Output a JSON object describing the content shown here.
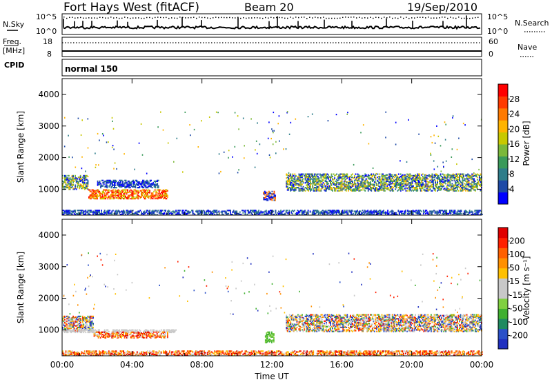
{
  "header": {
    "station": "Fort Hays West (fitACF)",
    "beam": "Beam 20",
    "date": "19/Sep/2010"
  },
  "strip_panels": {
    "nsky_label": "N.Sky",
    "nsearch_label": "N.Search",
    "nsky_ticks": [
      "10^5",
      "10^0"
    ],
    "nsearch_ticks": [
      "10^5",
      "10^0"
    ],
    "freq_label_line1": "Freq.",
    "freq_label_line2": "[MHz]",
    "freq_ticks": [
      "18",
      "8"
    ],
    "nave_label": "Nave",
    "nave_ticks": [
      "60",
      "0"
    ],
    "cpid_label": "CPID",
    "cpid_value": "normal 150"
  },
  "colorbars": {
    "power": {
      "label": "Power [dB]",
      "ticks": [
        "28",
        "24",
        "20",
        "16",
        "12",
        "8",
        "4"
      ],
      "colors": [
        "#0000ff",
        "#1e4aa6",
        "#2e7d8a",
        "#3a9a5a",
        "#7ab83a",
        "#c8c800",
        "#ffb400",
        "#ff7a00",
        "#ff3a00",
        "#ff0000"
      ]
    },
    "velocity": {
      "label": "Velocity [m s⁻¹]",
      "ticks": [
        "200",
        "100",
        "50",
        "15",
        "-15",
        "-50",
        "-100",
        "-200"
      ],
      "colors": [
        "#2030c0",
        "#2a50c8",
        "#208a60",
        "#40b030",
        "#80d040",
        "#c8c8c8",
        "#c8c8c8",
        "#ffc000",
        "#ff9000",
        "#ff6000",
        "#ff2000",
        "#e00000"
      ]
    }
  },
  "chart_data": [
    {
      "type": "heatmap",
      "title": "Power",
      "ylabel": "Slant Range [km]",
      "xlabel": "Time UT",
      "y_ticks": [
        "4000",
        "3000",
        "2000",
        "1000"
      ],
      "x_ticks": [
        "00:00",
        "04:00",
        "08:00",
        "12:00",
        "16:00",
        "20:00",
        "00:00"
      ],
      "ylim": [
        180,
        4500
      ],
      "xlim": [
        0,
        24
      ],
      "regions": [
        {
          "t0": 0.0,
          "t1": 1.5,
          "r0": 1000,
          "r1": 1450,
          "level": "mixed"
        },
        {
          "t0": 1.5,
          "t1": 6.0,
          "r0": 700,
          "r1": 1000,
          "level": "high"
        },
        {
          "t0": 2.0,
          "t1": 5.5,
          "r0": 1050,
          "r1": 1300,
          "level": "low"
        },
        {
          "t0": 11.5,
          "t1": 12.2,
          "r0": 650,
          "r1": 950,
          "level": "mid"
        },
        {
          "t0": 12.8,
          "t1": 24.0,
          "r0": 950,
          "r1": 1500,
          "level": "mixed"
        },
        {
          "t0": 0.0,
          "t1": 24.0,
          "r0": 200,
          "r1": 350,
          "level": "low"
        }
      ]
    },
    {
      "type": "heatmap",
      "title": "Velocity",
      "ylabel": "Slant Range [km]",
      "xlabel": "Time UT",
      "y_ticks": [
        "4000",
        "3000",
        "2000",
        "1000"
      ],
      "x_ticks": [
        "00:00",
        "04:00",
        "08:00",
        "12:00",
        "16:00",
        "20:00",
        "00:00"
      ],
      "ylim": [
        180,
        4500
      ],
      "xlim": [
        0,
        24
      ],
      "regions": [
        {
          "t0": 0.0,
          "t1": 1.8,
          "r0": 950,
          "r1": 1450,
          "level": "mixed"
        },
        {
          "t0": 0.0,
          "t1": 6.5,
          "r0": 920,
          "r1": 1000,
          "level": "gray"
        },
        {
          "t0": 1.8,
          "t1": 6.0,
          "r0": 750,
          "r1": 950,
          "level": "warm"
        },
        {
          "t0": 11.6,
          "t1": 12.1,
          "r0": 600,
          "r1": 950,
          "level": "green"
        },
        {
          "t0": 12.8,
          "t1": 24.0,
          "r0": 950,
          "r1": 1500,
          "level": "mixed"
        },
        {
          "t0": 0.0,
          "t1": 24.0,
          "r0": 200,
          "r1": 330,
          "level": "warm"
        }
      ]
    }
  ]
}
